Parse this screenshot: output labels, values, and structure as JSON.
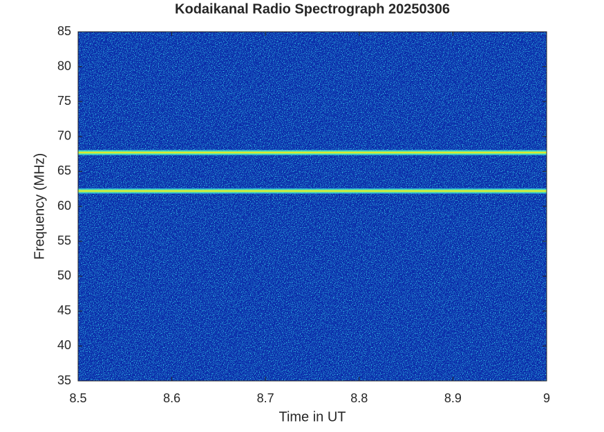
{
  "chart_data": {
    "type": "spectrogram",
    "title": "Kodaikanal Radio Spectrograph  20250306",
    "xlabel": "Time in UT",
    "ylabel": "Frequency (MHz)",
    "xlim": [
      8.5,
      9
    ],
    "xticks": [
      8.5,
      8.6,
      8.7,
      8.8,
      8.9,
      9
    ],
    "ylim": [
      35,
      85
    ],
    "yticks": [
      35,
      40,
      45,
      50,
      55,
      60,
      65,
      70,
      75,
      80,
      85
    ],
    "bands": [
      67.7,
      62.2
    ],
    "color": "#f0e020"
  }
}
